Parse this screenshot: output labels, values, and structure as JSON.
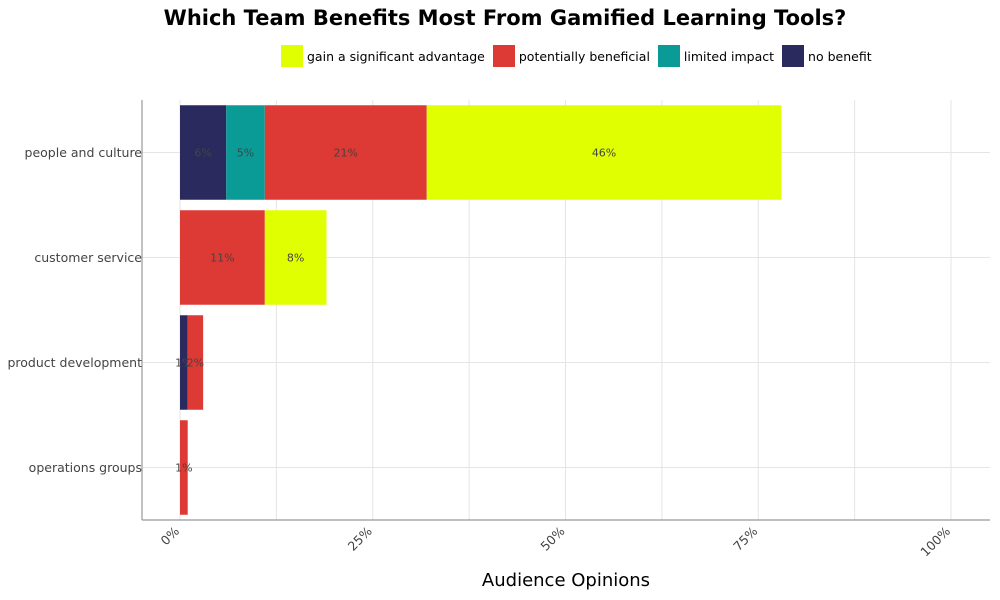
{
  "chart_data": {
    "type": "bar",
    "orientation": "horizontal",
    "stacked": true,
    "title": "Which Team Benefits Most From Gamified Learning Tools?",
    "xlabel": "Audience Opinions",
    "ylabel": "",
    "xlim": [
      0,
      100
    ],
    "x_ticks": [
      "0%",
      "25%",
      "50%",
      "75%",
      "100%"
    ],
    "x_tick_values": [
      0,
      25,
      50,
      75,
      100
    ],
    "grid": true,
    "legend_position": "top",
    "categories": [
      "people and culture",
      "customer service",
      "product development",
      "operations groups"
    ],
    "stack_order": [
      "no benefit",
      "limited impact",
      "potentially beneficial",
      "gain a significant advantage"
    ],
    "legend_order": [
      "gain a significant advantage",
      "potentially beneficial",
      "limited impact",
      "no benefit"
    ],
    "series": [
      {
        "name": "no benefit",
        "color": "#2a2a5e",
        "values": [
          6,
          0,
          1,
          0
        ],
        "labels": [
          "6%",
          "",
          "1%",
          ""
        ]
      },
      {
        "name": "limited impact",
        "color": "#0a9b96",
        "values": [
          5,
          0,
          0,
          0
        ],
        "labels": [
          "5%",
          "",
          "",
          ""
        ]
      },
      {
        "name": "potentially beneficial",
        "color": "#dd3a35",
        "values": [
          21,
          11,
          2,
          1
        ],
        "labels": [
          "21%",
          "11%",
          "2%",
          "1%"
        ]
      },
      {
        "name": "gain a significant advantage",
        "color": "#e0ff00",
        "values": [
          46,
          8,
          0,
          0
        ],
        "labels": [
          "46%",
          "8%",
          "",
          ""
        ]
      }
    ]
  }
}
